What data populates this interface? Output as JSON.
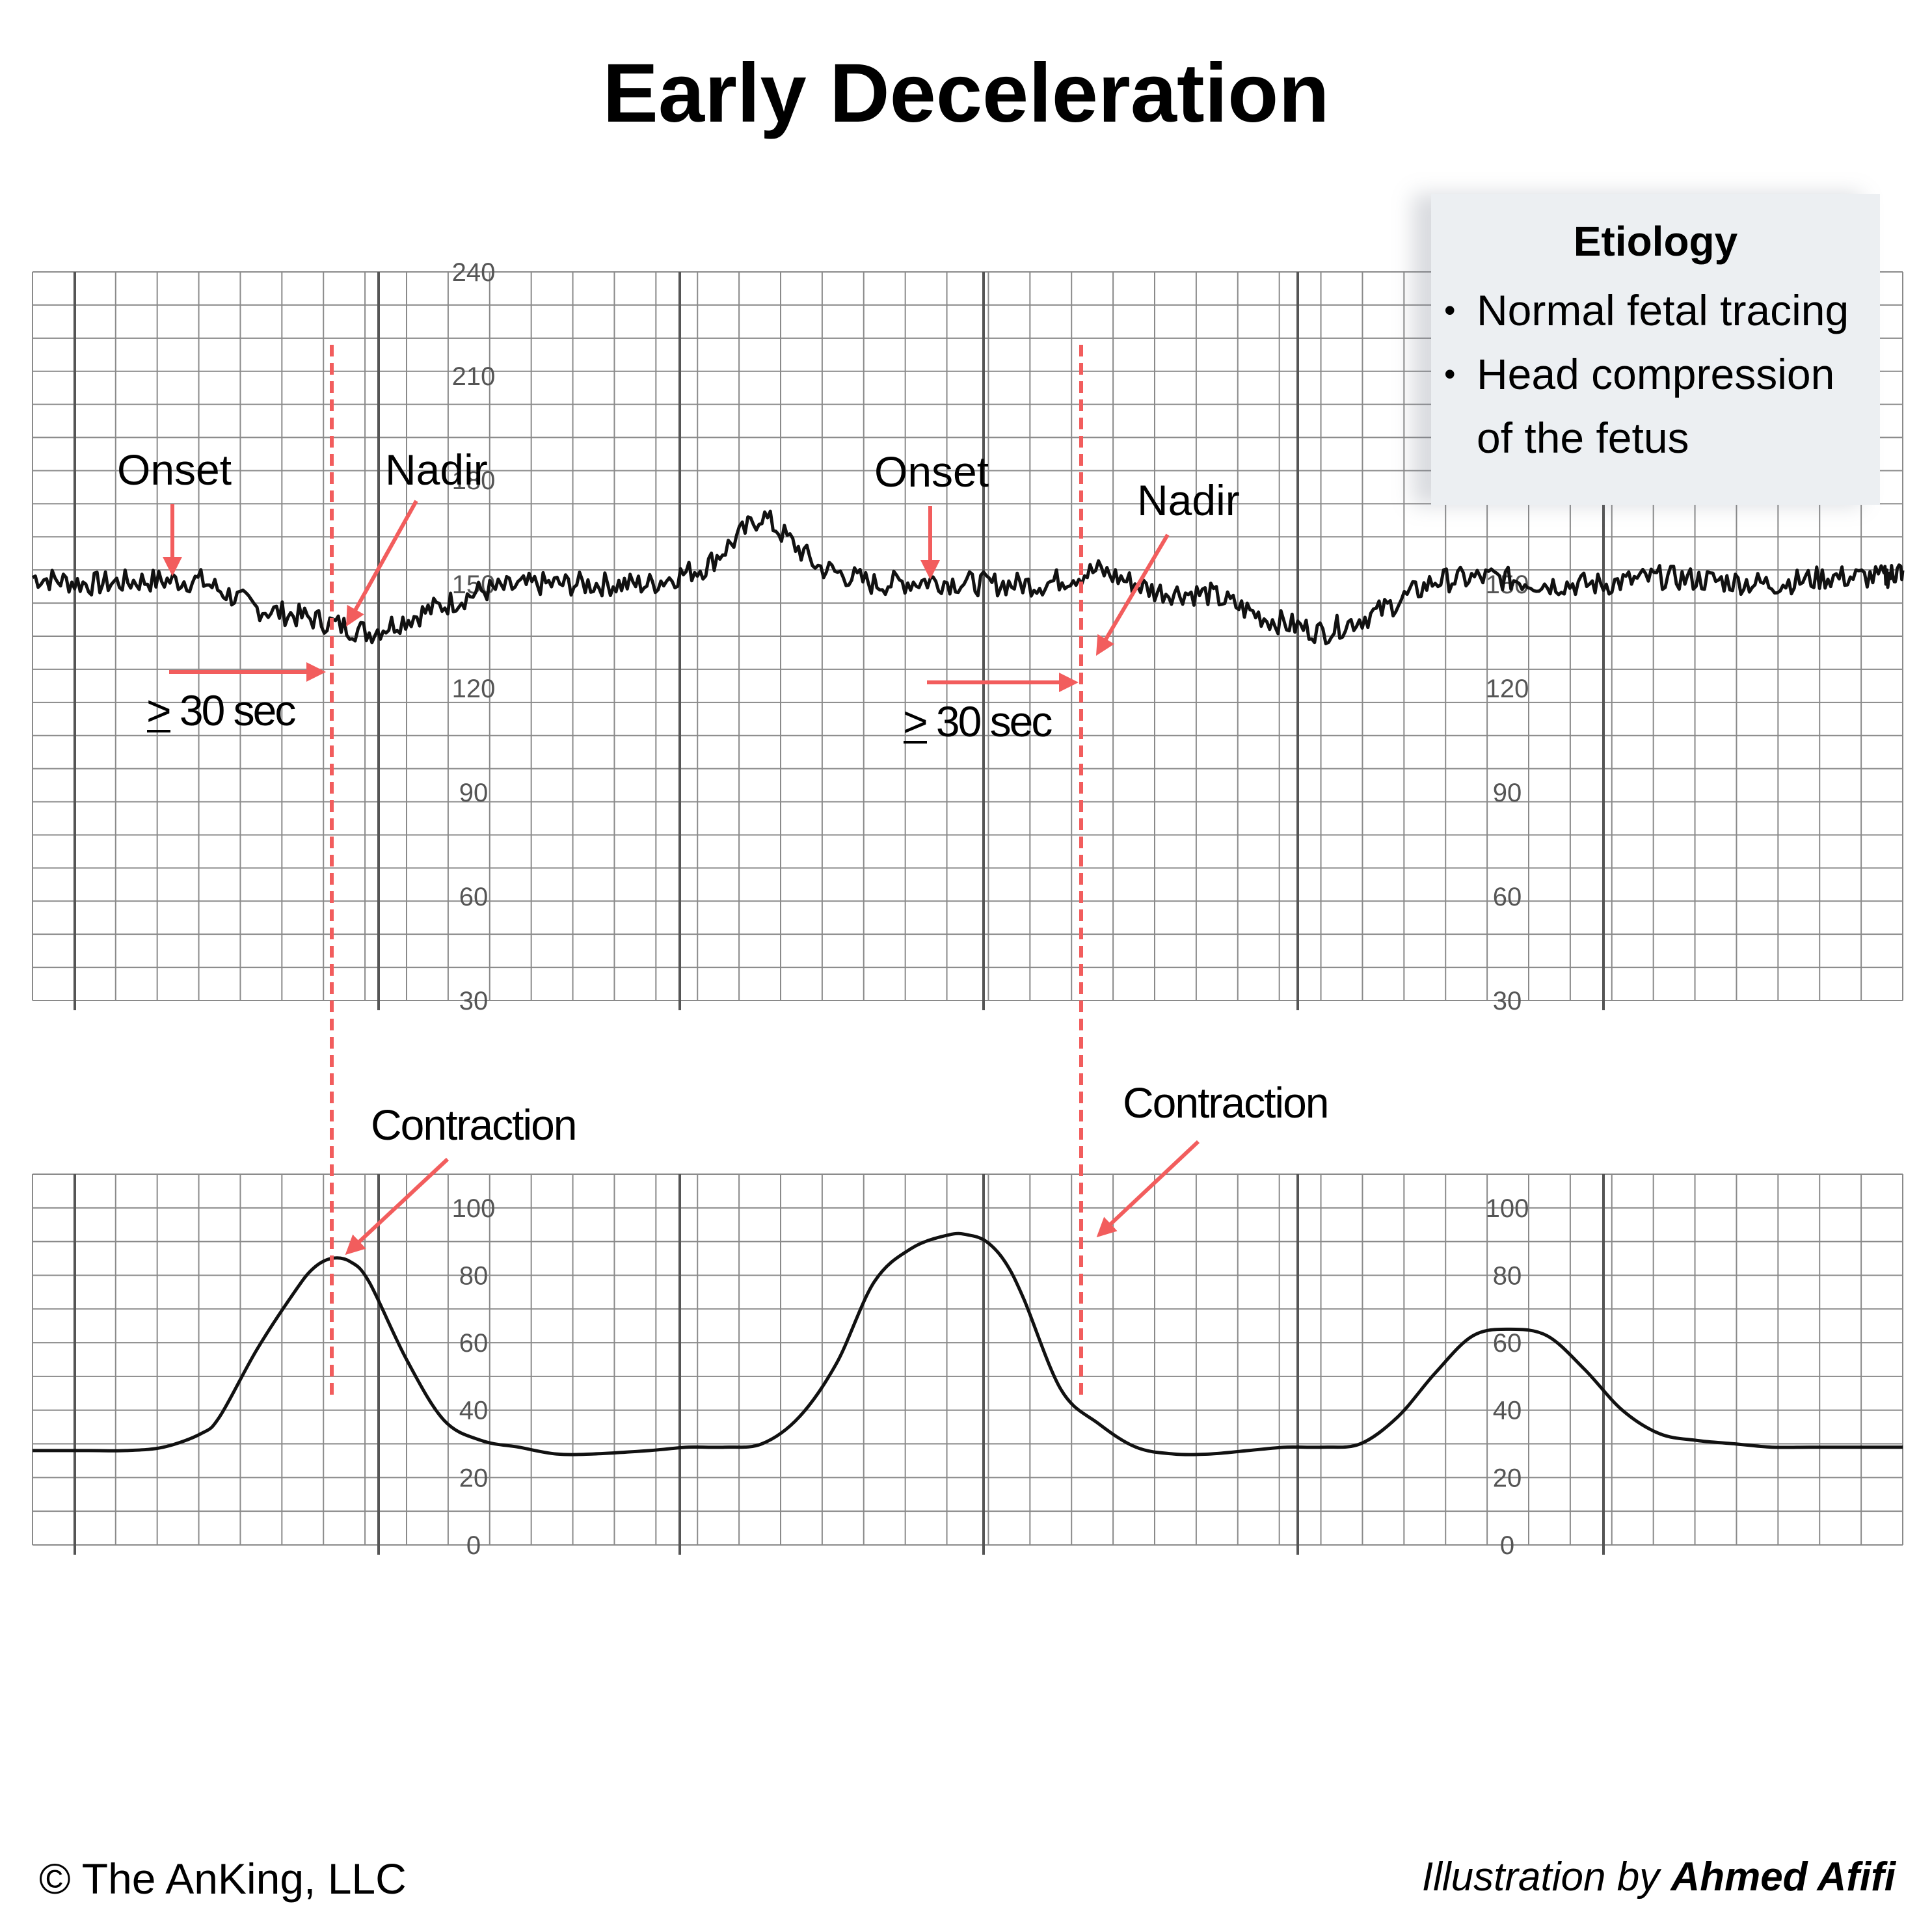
{
  "title": "Early Deceleration",
  "etiology": {
    "heading": "Etiology",
    "items": [
      "Normal fetal tracing",
      "Head compression of the fetus"
    ]
  },
  "annotations": {
    "onset": "Onset",
    "nadir": "Nadir",
    "contraction": "Contraction",
    "duration_prefix": ">",
    "duration_rest": " 30 sec"
  },
  "footer": {
    "copyright": "© The AnKing, LLC",
    "illustration_prefix": "Illustration by",
    "illustrator": "Ahmed Afifi"
  },
  "colors": {
    "trace": "#111111",
    "grid": "#777777",
    "annotation": "#f25d5d",
    "panel": "#eceff2"
  },
  "chart_data": [
    {
      "type": "line",
      "title": "",
      "ylabel": "",
      "ylim": [
        30,
        240
      ],
      "yticks": [
        240,
        210,
        180,
        150,
        120,
        90,
        60,
        30
      ],
      "xlim": [
        0,
        100
      ],
      "series": [
        {
          "name": "",
          "x": [
            0,
            3,
            6,
            9,
            12,
            15,
            18,
            21,
            24,
            27,
            30,
            33,
            36,
            39,
            42,
            45,
            48,
            51,
            54,
            57,
            60,
            63,
            66,
            69,
            72,
            75,
            78,
            81,
            84,
            87,
            90,
            93,
            96,
            99,
            100
          ],
          "y": [
            152,
            150,
            151,
            151,
            143,
            140,
            136,
            142,
            148,
            150,
            150,
            150,
            155,
            170,
            155,
            150,
            151,
            150,
            150,
            154,
            148,
            147,
            140,
            136,
            142,
            151,
            152,
            150,
            150,
            152,
            151,
            150,
            152,
            152,
            154
          ]
        }
      ]
    },
    {
      "type": "line",
      "title": "",
      "ylabel": "",
      "ylim": [
        0,
        110
      ],
      "yticks": [
        100,
        80,
        60,
        40,
        20,
        0
      ],
      "xlim": [
        0,
        100
      ],
      "series": [
        {
          "name": "",
          "x": [
            0,
            3,
            5,
            7,
            9,
            10,
            12,
            14,
            15,
            16,
            17,
            18,
            20,
            22,
            24,
            26,
            28,
            30,
            33,
            35,
            37,
            39,
            41,
            43,
            45,
            47,
            49,
            50,
            51,
            52,
            53,
            55,
            57,
            59,
            61,
            63,
            65,
            67,
            69,
            71,
            73,
            75,
            77,
            79,
            81,
            83,
            85,
            87,
            89,
            91,
            93,
            95,
            97,
            99,
            100
          ],
          "y": [
            28,
            28,
            28,
            29,
            33,
            38,
            58,
            75,
            82,
            85,
            84,
            78,
            55,
            37,
            31,
            29,
            27,
            27,
            28,
            29,
            29,
            30,
            38,
            54,
            78,
            88,
            92,
            92,
            90,
            84,
            73,
            46,
            36,
            29,
            27,
            27,
            28,
            29,
            29,
            30,
            38,
            51,
            62,
            64,
            62,
            52,
            40,
            33,
            31,
            30,
            29,
            29,
            29,
            29,
            29
          ]
        }
      ]
    }
  ]
}
